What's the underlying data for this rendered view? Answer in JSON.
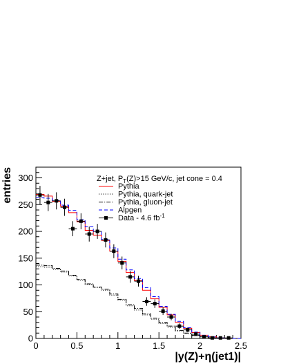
{
  "chart_data": {
    "type": "histogram",
    "title": "",
    "xlabel": "|y(Z)+η(jet1)|",
    "ylabel": "entries",
    "xlim": [
      0,
      2.5
    ],
    "ylim": [
      0,
      320
    ],
    "xticks": [
      0,
      0.5,
      1,
      1.5,
      2,
      2.5
    ],
    "xtick_labels": [
      "0",
      "0.5",
      "1",
      "1.5",
      "2",
      "2.5"
    ],
    "yticks": [
      0,
      50,
      100,
      150,
      200,
      250,
      300
    ],
    "ytick_labels": [
      "0",
      "50",
      "100",
      "150",
      "200",
      "250",
      "300"
    ],
    "bin_edges": [
      0,
      0.1,
      0.2,
      0.3,
      0.4,
      0.5,
      0.6,
      0.7,
      0.8,
      0.9,
      1.0,
      1.1,
      1.2,
      1.3,
      1.4,
      1.5,
      1.6,
      1.7,
      1.8,
      1.9,
      2.0,
      2.1,
      2.2,
      2.3,
      2.4,
      2.5
    ],
    "legend": {
      "header_parts": [
        "Z+jet, P",
        "T",
        "(Z)>15 GeV/c, jet cone = 0.4"
      ],
      "placement": "top-right"
    },
    "series": [
      {
        "name": "Pythia",
        "style": "solid",
        "color": "#ff0000",
        "values": [
          269,
          266,
          256,
          247,
          235,
          218,
          202,
          193,
          183,
          163,
          144,
          123,
          108,
          90,
          74,
          58,
          44,
          30,
          19,
          11,
          6,
          3,
          1,
          0.5,
          0
        ]
      },
      {
        "name": "Pythia, quark-jet",
        "style": "dotted",
        "color": "#000000",
        "values": [
          134,
          133,
          129,
          124,
          117,
          109,
          101,
          95,
          90,
          81,
          72,
          61,
          53,
          44,
          36,
          28,
          21,
          14,
          9,
          5,
          3,
          1.5,
          0.5,
          0.2,
          0
        ]
      },
      {
        "name": "Pythia, gluon-jet",
        "style": "dashdot",
        "color": "#000000",
        "values": [
          137,
          136,
          131,
          126,
          118,
          110,
          102,
          96,
          92,
          83,
          73,
          63,
          56,
          46,
          38,
          30,
          23,
          15,
          10,
          6,
          3,
          1.5,
          0.5,
          0.2,
          0
        ]
      },
      {
        "name": "Alpgen",
        "style": "dashed",
        "color": "#0000ff",
        "values": [
          263,
          262,
          258,
          249,
          239,
          222,
          209,
          199,
          185,
          169,
          148,
          128,
          112,
          95,
          78,
          60,
          45,
          32,
          20,
          12,
          6,
          3,
          1,
          0.5,
          0
        ]
      },
      {
        "name": "Data - 4.6 fb",
        "name_sup": "-1",
        "style": "markers",
        "color": "#000000",
        "x": [
          0.05,
          0.15,
          0.25,
          0.35,
          0.45,
          0.55,
          0.65,
          0.75,
          0.85,
          0.95,
          1.05,
          1.15,
          1.25,
          1.35,
          1.45,
          1.55,
          1.65,
          1.75,
          1.85,
          1.95,
          2.05,
          2.15,
          2.25,
          2.35
        ],
        "values": [
          268,
          254,
          257,
          245,
          205,
          219,
          195,
          200,
          184,
          163,
          141,
          115,
          107,
          69,
          65,
          51,
          40,
          23,
          16,
          8,
          3,
          1,
          1,
          1
        ],
        "errors": [
          17,
          16,
          16,
          16,
          14,
          15,
          14,
          14,
          14,
          13,
          12,
          11,
          10,
          8,
          8,
          7,
          6,
          5,
          4,
          3,
          2,
          1,
          1,
          1
        ]
      }
    ]
  }
}
